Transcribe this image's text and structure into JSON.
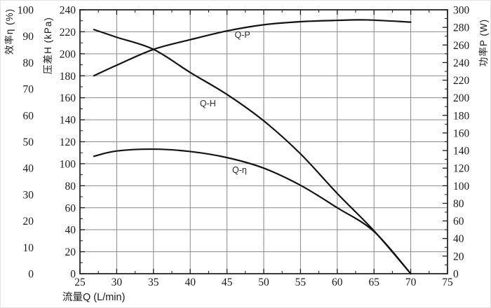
{
  "chart_data": {
    "type": "line",
    "title": "",
    "x_axis": {
      "label": "流量Q (L/min)",
      "min": 25,
      "max": 75,
      "major_step": 5,
      "minor_step": 2.5,
      "ticks": [
        25,
        30,
        35,
        40,
        45,
        50,
        55,
        60,
        65,
        70,
        75
      ]
    },
    "left_axis_eta": {
      "label": "效率η (%)",
      "min": 0,
      "max": 100,
      "major_step": 10,
      "ticks": [
        0,
        10,
        20,
        30,
        40,
        50,
        60,
        70,
        80,
        90,
        100
      ]
    },
    "left_axis_H": {
      "label": "压差H (kPa)",
      "min": 0,
      "max": 240,
      "major_step": 20,
      "minor_step": 10,
      "ticks": [
        0,
        20,
        40,
        60,
        80,
        100,
        120,
        140,
        160,
        180,
        200,
        220,
        240
      ]
    },
    "right_axis_P": {
      "label": "功率P (W)",
      "min": 0,
      "max": 300,
      "major_step": 20,
      "minor_step": 10,
      "ticks": [
        0,
        20,
        40,
        60,
        80,
        100,
        120,
        140,
        160,
        180,
        200,
        220,
        240,
        260,
        280,
        300
      ]
    },
    "grid": {
      "vertical_at": [
        30,
        35,
        40,
        45,
        50,
        55,
        60,
        65,
        70
      ],
      "horizontal_at_H": [
        20,
        40,
        60,
        80,
        100,
        120,
        140,
        160,
        180,
        200,
        220
      ]
    },
    "series": [
      {
        "id": "q-p",
        "name": "Q-P",
        "axis": "P",
        "label_at": {
          "q": 47.1,
          "v": 268
        },
        "points": [
          [
            26.9,
            225
          ],
          [
            30,
            237
          ],
          [
            35,
            255
          ],
          [
            40,
            266
          ],
          [
            45,
            276
          ],
          [
            50,
            283
          ],
          [
            55,
            286.5
          ],
          [
            60,
            288
          ],
          [
            64,
            288.5
          ],
          [
            70,
            286
          ]
        ]
      },
      {
        "id": "q-h",
        "name": "Q-H",
        "axis": "H",
        "label_at": {
          "q": 42.4,
          "v": 152
        },
        "points": [
          [
            26.9,
            222
          ],
          [
            30,
            215
          ],
          [
            35,
            204
          ],
          [
            40,
            183
          ],
          [
            45,
            163
          ],
          [
            50,
            139
          ],
          [
            55,
            109
          ],
          [
            60,
            73
          ],
          [
            65,
            39
          ],
          [
            70,
            0
          ]
        ]
      },
      {
        "id": "q-eta",
        "name": "Q-η",
        "axis": "eta",
        "label_at": {
          "q": 46.7,
          "v": 38.2
        },
        "points": [
          [
            26.9,
            44.5
          ],
          [
            30,
            46.5
          ],
          [
            35,
            47.2
          ],
          [
            40,
            46.3
          ],
          [
            45,
            44
          ],
          [
            50,
            40
          ],
          [
            55,
            33.5
          ],
          [
            60,
            25
          ],
          [
            65,
            16
          ],
          [
            70,
            0
          ]
        ]
      }
    ],
    "colors": {
      "curve": "#141414",
      "grid": "#8a8a8a",
      "axis": "#1a1a1a",
      "background": "#ffffff"
    }
  }
}
